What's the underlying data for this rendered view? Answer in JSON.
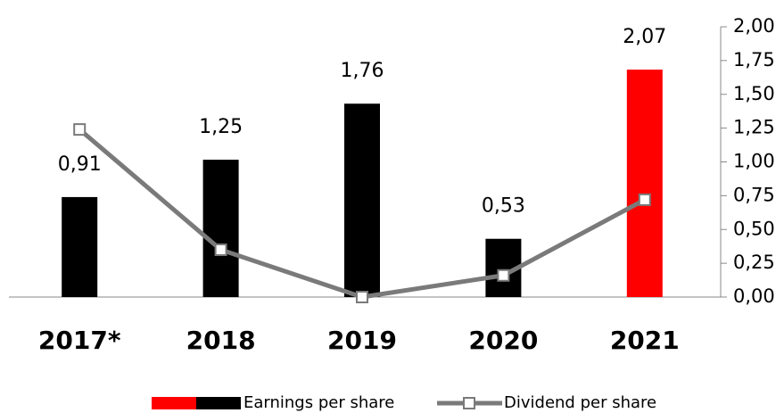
{
  "chart_data": {
    "type": "bar",
    "categories": [
      "2017*",
      "2018",
      "2019",
      "2020",
      "2021"
    ],
    "series": [
      {
        "name": "Earnings per share",
        "type": "bar",
        "colors": [
          "#000000",
          "#000000",
          "#000000",
          "#000000",
          "#ff0000"
        ],
        "values": [
          0.91,
          1.25,
          1.76,
          0.53,
          2.07
        ],
        "value_labels": [
          "0,91",
          "1,25",
          "1,76",
          "0,53",
          "2,07"
        ]
      },
      {
        "name": "Dividend per share",
        "type": "line",
        "axis": "y2",
        "color": "#7a7a7a",
        "values": [
          1.24,
          0.35,
          0.0,
          0.16,
          0.72
        ]
      }
    ],
    "ylim": [
      0,
      2.46
    ],
    "y2lim": [
      0,
      2
    ],
    "y2ticks": [
      {
        "value": 0,
        "label": "0,00"
      },
      {
        "value": 0.25,
        "label": "0,25"
      },
      {
        "value": 0.5,
        "label": "0,50"
      },
      {
        "value": 0.75,
        "label": "0,75"
      },
      {
        "value": 1,
        "label": "1,00"
      },
      {
        "value": 1.25,
        "label": "1,25"
      },
      {
        "value": 1.5,
        "label": "1,50"
      },
      {
        "value": 1.75,
        "label": "1,75"
      },
      {
        "value": 2,
        "label": "2,00"
      }
    ]
  }
}
